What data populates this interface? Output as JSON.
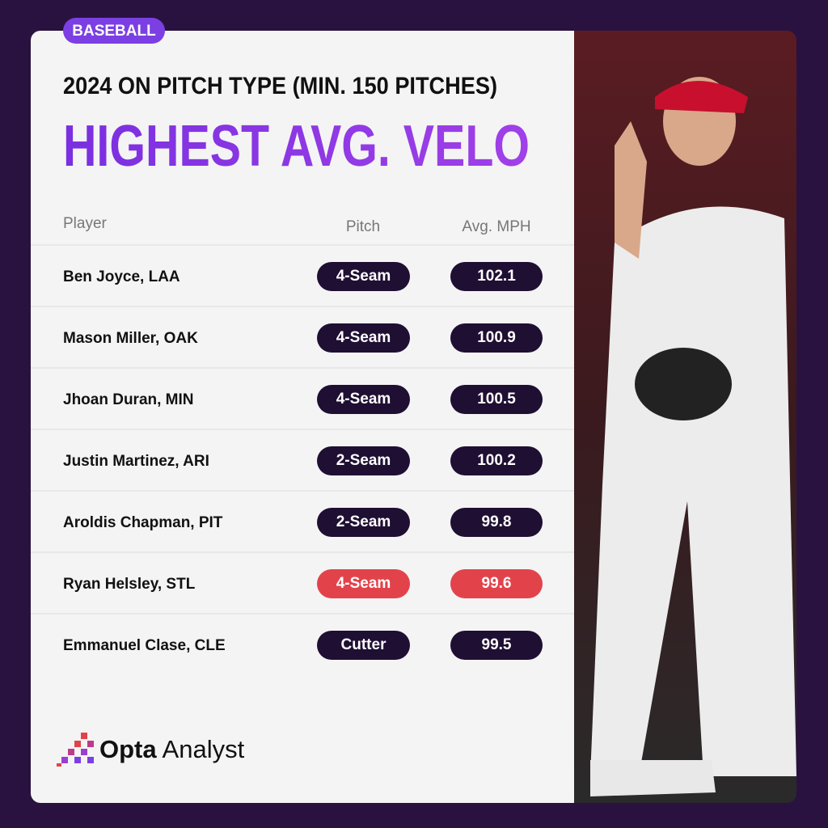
{
  "tag": "BASEBALL",
  "header": {
    "subtitle": "2024 ON PITCH TYPE (MIN. 150 PITCHES)",
    "title": "HIGHEST AVG. VELO"
  },
  "table": {
    "columns": [
      "Player",
      "Pitch",
      "Avg. MPH"
    ],
    "rows": [
      [
        "Ben Joyce, LAA",
        "4-Seam",
        102.1
      ],
      [
        "Mason Miller, OAK",
        "4-Seam",
        100.9
      ],
      [
        "Jhoan Duran, MIN",
        "4-Seam",
        100.5
      ],
      [
        "Justin Martinez, ARI",
        "2-Seam",
        100.2
      ],
      [
        "Aroldis Chapman, PIT",
        "2-Seam",
        99.8
      ],
      [
        "Ryan Helsley, STL",
        "4-Seam",
        99.6
      ],
      [
        "Emmanuel Clase, CLE",
        "Cutter",
        99.5
      ]
    ],
    "pill_color": "#1f0f33",
    "highlight_row": 5,
    "highlight_color": "#e2434b"
  },
  "logo": {
    "brand": "Opta",
    "product": "Analyst"
  }
}
